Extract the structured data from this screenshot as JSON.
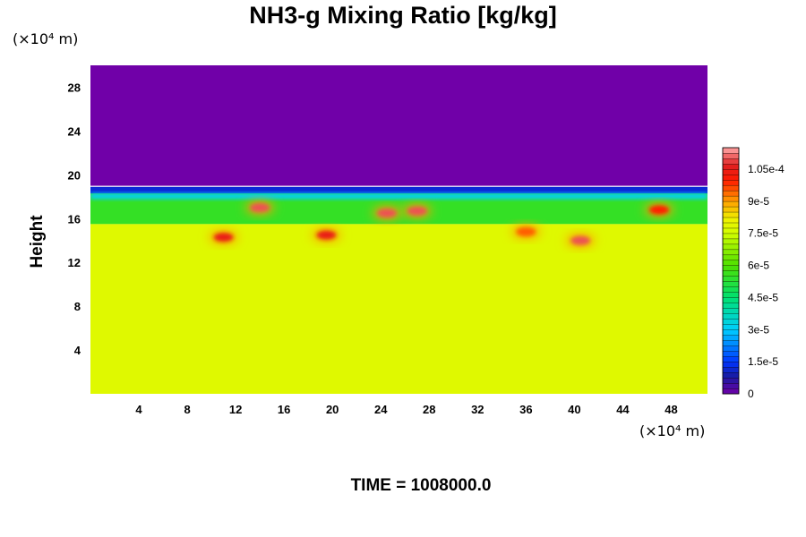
{
  "title": "NH3-g Mixing Ratio [kg/kg]",
  "y_unit": "(×10⁴ m)",
  "x_unit": "(×10⁴ m)",
  "ylabel": "Height",
  "time_label": "TIME = 1008000.0",
  "chart_data": {
    "type": "heatmap",
    "title": "NH3-g Mixing Ratio [kg/kg]",
    "ylabel": "Height",
    "xlabel": "",
    "xlim": [
      0,
      51
    ],
    "ylim": [
      0,
      30
    ],
    "x_ticks": [
      4,
      8,
      12,
      16,
      20,
      24,
      28,
      32,
      36,
      40,
      44,
      48
    ],
    "y_ticks": [
      4,
      8,
      12,
      16,
      20,
      24,
      28
    ],
    "colorbar": {
      "vmin": 0,
      "vmax": 0.000115,
      "ticks": [
        0,
        1.5e-05,
        3e-05,
        4.5e-05,
        6e-05,
        7.5e-05,
        9e-05,
        0.000105
      ],
      "tick_labels": [
        "0",
        "1.5e-5",
        "3e-5",
        "4.5e-5",
        "6e-5",
        "7.5e-5",
        "9e-5",
        "1.05e-4"
      ]
    },
    "regions": [
      {
        "desc": "upper layer (near zero)",
        "y_range": [
          19,
          30
        ],
        "value": 0
      },
      {
        "desc": "mid-upper layer",
        "y_range": [
          15.5,
          18.5
        ],
        "value": 5.5e-05
      },
      {
        "desc": "lower layer",
        "y_range": [
          0,
          15.5
        ],
        "value": 7.8e-05
      }
    ],
    "features": [
      {
        "x": 11,
        "y": 14.3,
        "value": 0.000105
      },
      {
        "x": 14,
        "y": 17,
        "value": 0.00011
      },
      {
        "x": 19.5,
        "y": 14.5,
        "value": 0.000105
      },
      {
        "x": 24.5,
        "y": 16.5,
        "value": 0.00011
      },
      {
        "x": 27,
        "y": 16.7,
        "value": 0.00011
      },
      {
        "x": 36,
        "y": 14.8,
        "value": 9.5e-05
      },
      {
        "x": 40.5,
        "y": 14,
        "value": 0.00011
      },
      {
        "x": 47,
        "y": 16.8,
        "value": 0.0001
      }
    ],
    "color_scale": [
      {
        "value": 0,
        "color": "#7000a8"
      },
      {
        "value": 8e-06,
        "color": "#1a1aa0"
      },
      {
        "value": 1.5e-05,
        "color": "#0035ff"
      },
      {
        "value": 3e-05,
        "color": "#00cfff"
      },
      {
        "value": 4.5e-05,
        "color": "#00e070"
      },
      {
        "value": 6e-05,
        "color": "#4ee000"
      },
      {
        "value": 7.5e-05,
        "color": "#d2ff00"
      },
      {
        "value": 8.2e-05,
        "color": "#f0f000"
      },
      {
        "value": 9e-05,
        "color": "#ffa000"
      },
      {
        "value": 0.0001,
        "color": "#ff1a00"
      },
      {
        "value": 0.000107,
        "color": "#e02020"
      },
      {
        "value": 0.000115,
        "color": "#ffa8a8"
      }
    ]
  }
}
